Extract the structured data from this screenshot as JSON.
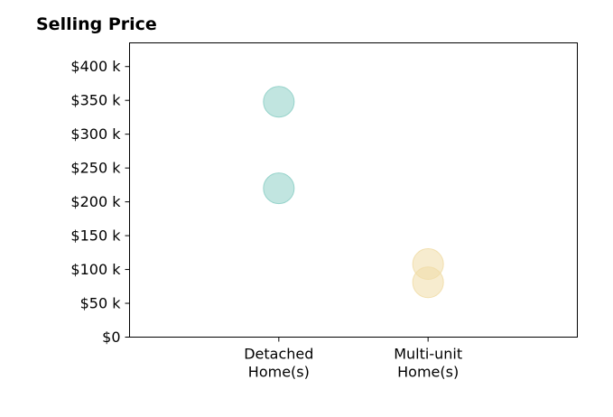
{
  "chart_data": {
    "type": "scatter",
    "title": "Selling Price",
    "xlabel": "",
    "ylabel": "",
    "categories": [
      "Detached\nHome(s)",
      "Multi-unit\nHome(s)"
    ],
    "xlim": [
      -1,
      2
    ],
    "ylim": [
      0,
      435000
    ],
    "yticks": [
      0,
      50000,
      100000,
      150000,
      200000,
      250000,
      300000,
      350000,
      400000
    ],
    "ytick_labels": [
      "$0",
      "$50 k",
      "$100 k",
      "$150 k",
      "$200 k",
      "$250 k",
      "$300 k",
      "$350 k",
      "$400 k"
    ],
    "grid": false,
    "series": [
      {
        "category": "Detached\nHome(s)",
        "values": [
          348000,
          220000
        ],
        "color": "#8ecfc7"
      },
      {
        "category": "Multi-unit\nHome(s)",
        "values": [
          108000,
          81000
        ],
        "color": "#f1dda8"
      }
    ]
  }
}
